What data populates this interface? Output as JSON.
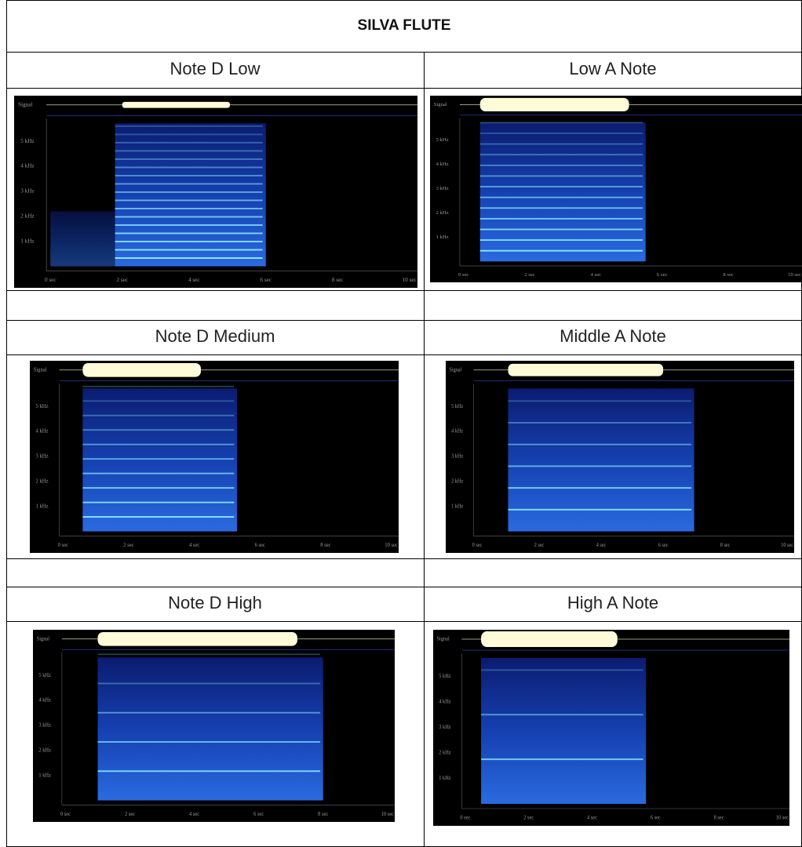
{
  "title": "SILVA FLUTE",
  "table": {
    "rows": [
      [
        "Note D Low",
        "Low A Note"
      ],
      [
        "Note D Medium",
        "Middle A Note"
      ],
      [
        "Note D High",
        "High A Note"
      ]
    ]
  },
  "spectrogram_labels": {
    "signal": "Signal",
    "frequency": [
      "5 kHz",
      "4 kHz",
      "3 kHz",
      "2 kHz",
      "1 kHz"
    ],
    "time": [
      "0 sec",
      "2 sec",
      "4 sec",
      "6 sec",
      "8 sec",
      "10 sec"
    ]
  }
}
